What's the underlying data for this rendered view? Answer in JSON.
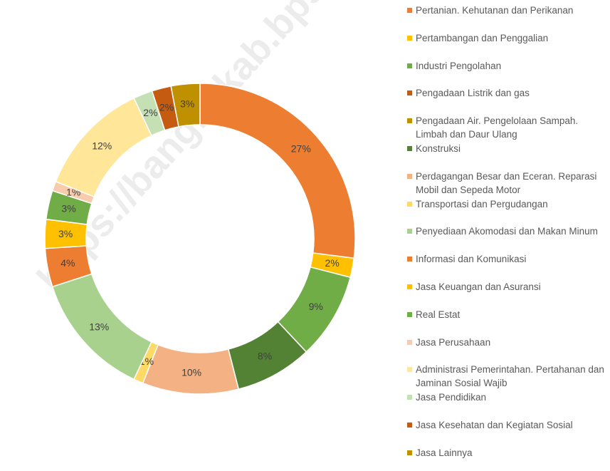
{
  "chart_data": {
    "type": "donut",
    "watermark": "https://bangkakab.bps.go.id",
    "categories": [
      "Pertanian. Kehutanan dan Perikanan",
      "Pertambangan dan Penggalian",
      "Industri Pengolahan",
      "Pengadaan Listrik dan gas",
      "Pengadaan Air. Pengelolaan Sampah. Limbah dan Daur Ulang",
      "Konstruksi",
      "Perdagangan Besar dan Eceran. Reparasi Mobil dan Sepeda Motor",
      "Transportasi dan Pergudangan",
      "Penyediaan Akomodasi dan Makan Minum",
      "Informasi dan Komunikasi",
      "Jasa Keuangan dan Asuransi",
      "Real Estat",
      "Jasa Perusahaan",
      "Administrasi Pemerintahan. Pertahanan dan Jaminan Sosial Wajib",
      "Jasa Pendidikan",
      "Jasa Kesehatan dan Kegiatan Sosial",
      "Jasa Lainnya"
    ],
    "values": [
      27,
      2,
      9,
      0,
      0,
      8,
      10,
      1,
      13,
      4,
      3,
      3,
      1,
      12,
      2,
      2,
      3
    ],
    "value_labels": [
      "27%",
      "2%",
      "9%",
      "0%",
      "0%",
      "8%",
      "10%",
      "1%",
      "13%",
      "4%",
      "3%",
      "3%",
      "1%",
      "12%",
      "2%",
      "2%",
      "3%"
    ],
    "colors": [
      "#ed7d31",
      "#ffc000",
      "#70ad47",
      "#c55a11",
      "#bf9000",
      "#548235",
      "#f4b183",
      "#ffd966",
      "#a9d18e",
      "#ed7d31",
      "#ffc000",
      "#70ad47",
      "#f8cbad",
      "#ffe699",
      "#c5e0b4",
      "#c55a11",
      "#bf9000"
    ],
    "legend": "right"
  }
}
